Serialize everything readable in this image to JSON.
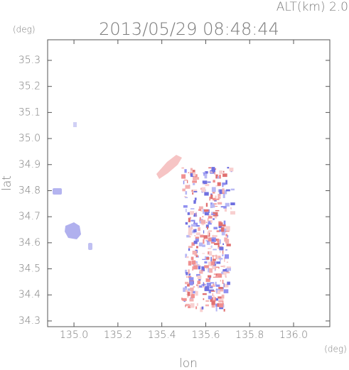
{
  "chart_data": {
    "type": "map",
    "title": "2013/05/29 08:48:44",
    "subtitle": "ALT(km) 2.0",
    "y_unit": "(deg)",
    "x_unit": "(deg)",
    "y_label": "lat",
    "x_label": "lon",
    "xlim": [
      134.88,
      136.165
    ],
    "ylim": [
      34.278,
      35.379
    ],
    "xticks": [
      {
        "value": 135,
        "label": "135.0"
      },
      135.2,
      135.4,
      135.6,
      135.8,
      {
        "value": 136,
        "label": "136.0"
      }
    ],
    "yticks": [
      34.3,
      34.4,
      34.5,
      34.6,
      34.7,
      34.8,
      34.9,
      {
        "value": 35,
        "label": "35.0"
      },
      35.1,
      35.2,
      35.3
    ]
  }
}
